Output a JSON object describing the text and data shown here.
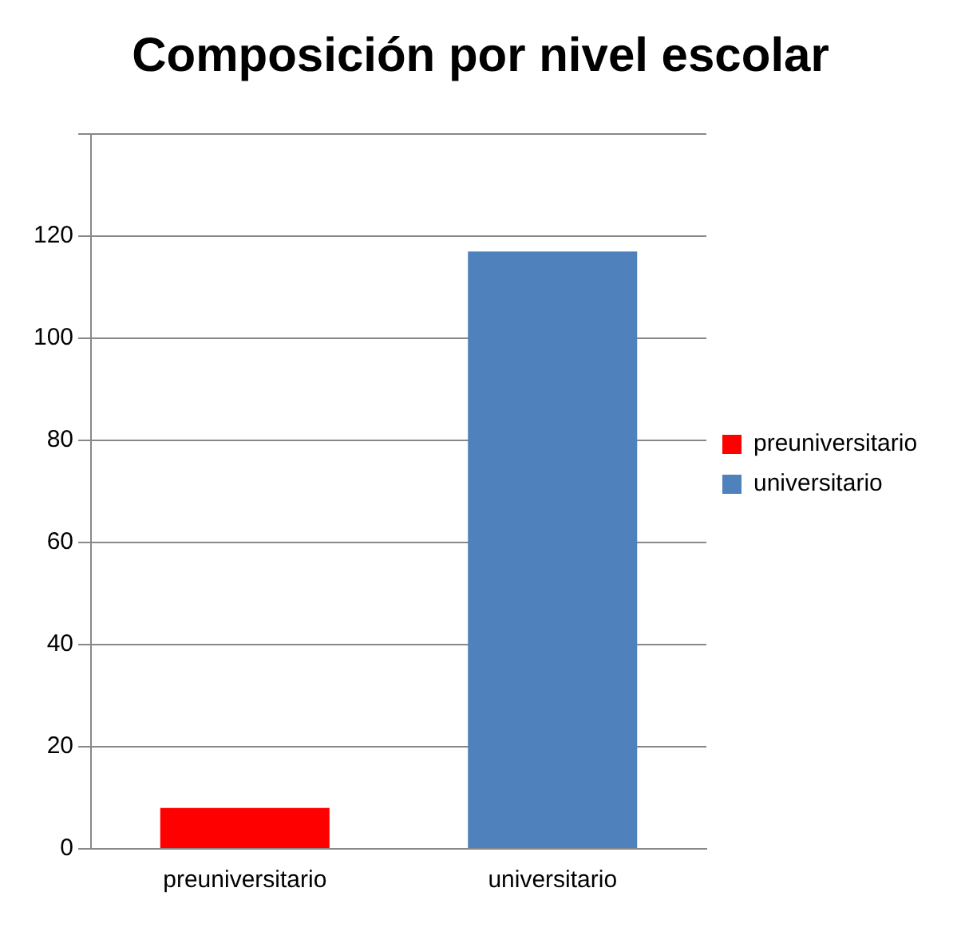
{
  "chart_data": {
    "type": "bar",
    "title": "Composición por nivel escolar",
    "categories": [
      "preuniversitario",
      "universitario"
    ],
    "series": [
      {
        "name": "preuniversitario",
        "color": "#ff0000",
        "values": [
          8,
          null
        ]
      },
      {
        "name": "universitario",
        "color": "#4f81bd",
        "values": [
          null,
          117
        ]
      }
    ],
    "ylim": [
      0,
      140
    ],
    "yticks": [
      0,
      20,
      40,
      60,
      80,
      100,
      120,
      {
        "value": 140,
        "label": null
      }
    ],
    "grid": "y",
    "legend": "right"
  }
}
